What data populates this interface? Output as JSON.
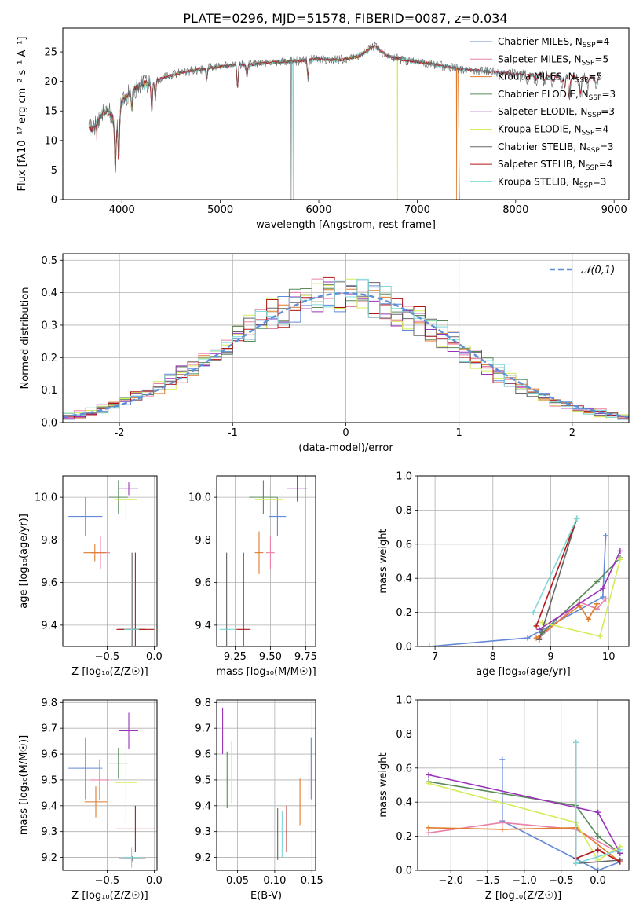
{
  "figure": {
    "title": "PLATE=0296, MJD=51578, FIBERID=0087, z=0.034"
  },
  "colors": {
    "chabrier_miles": "#6389d8",
    "salpeter_miles": "#e981a6",
    "kroupa_miles": "#e07a2b",
    "chabrier_elodie": "#5a8a5a",
    "salpeter_elodie": "#9933b8",
    "kroupa_elodie": "#d4ec5a",
    "chabrier_stelib": "#666666",
    "salpeter_stelib": "#b31818",
    "kroupa_stelib": "#7fd8d8",
    "normal": "#5c8fd6"
  },
  "chart_data": [
    {
      "id": "spectrum",
      "type": "line",
      "title": "PLATE=0296, MJD=51578, FIBERID=0087, z=0.034",
      "xlabel": "wavelength [Angstrom, rest frame]",
      "ylabel": "Flux [fλ10⁻¹⁷ erg cm⁻² s⁻¹ A⁻¹]",
      "xlim": [
        3400,
        9150
      ],
      "ylim": [
        0,
        29
      ],
      "xticks": [
        4000,
        5000,
        6000,
        7000,
        8000,
        9000
      ],
      "yticks": [
        0,
        5,
        10,
        15,
        20,
        25
      ],
      "grid": false,
      "legend_position": "top-right",
      "continuum": {
        "x": [
          3660,
          3700,
          3750,
          3800,
          3850,
          3900,
          3950,
          4000,
          4050,
          4100,
          4200,
          4300,
          4400,
          4500,
          4600,
          4700,
          4800,
          4900,
          5000,
          5100,
          5200,
          5300,
          5400,
          5500,
          5600,
          5800,
          6000,
          6200,
          6400,
          6563,
          6700,
          6900,
          7100,
          7300,
          7500,
          7700,
          7900,
          8100,
          8300,
          8500,
          8700,
          8850
        ],
        "y": [
          12.5,
          11.8,
          13.0,
          14.5,
          15.0,
          14.2,
          12.0,
          16.5,
          17.5,
          18.3,
          19.5,
          19.8,
          20.5,
          21.0,
          21.5,
          21.8,
          22.0,
          22.3,
          22.5,
          22.7,
          22.9,
          22.8,
          23.0,
          23.2,
          23.3,
          23.5,
          23.8,
          23.6,
          24.2,
          26.0,
          24.3,
          23.5,
          23.1,
          22.5,
          22.0,
          21.7,
          21.4,
          21.2,
          21.0,
          20.8,
          20.7,
          20.6
        ]
      },
      "absorption_lines": [
        {
          "x": 3933,
          "depth": 8
        },
        {
          "x": 3968,
          "depth": 7
        },
        {
          "x": 4101,
          "depth": 3
        },
        {
          "x": 4304,
          "depth": 5
        },
        {
          "x": 4340,
          "depth": 3
        },
        {
          "x": 4861,
          "depth": 2
        },
        {
          "x": 5175,
          "depth": 4
        },
        {
          "x": 5270,
          "depth": 2
        },
        {
          "x": 5890,
          "depth": 3
        },
        {
          "x": 8498,
          "depth": 2
        },
        {
          "x": 8542,
          "depth": 3
        },
        {
          "x": 8662,
          "depth": 3
        }
      ],
      "series": [
        {
          "key": "chabrier_miles",
          "label": "Chabrier MILES, N",
          "ssp": "4"
        },
        {
          "key": "salpeter_miles",
          "label": "Salpeter MILES, N",
          "ssp": "5"
        },
        {
          "key": "kroupa_miles",
          "label": "Kroupa MILES, N",
          "ssp": "5"
        },
        {
          "key": "chabrier_elodie",
          "label": "Chabrier ELODIE, N",
          "ssp": "3"
        },
        {
          "key": "salpeter_elodie",
          "label": "Salpeter ELODIE, N",
          "ssp": "3"
        },
        {
          "key": "kroupa_elodie",
          "label": "Kroupa ELODIE, N",
          "ssp": "4"
        },
        {
          "key": "chabrier_stelib",
          "label": "Chabrier STELIB, N",
          "ssp": "3"
        },
        {
          "key": "salpeter_stelib",
          "label": "Salpeter STELIB, N",
          "ssp": "4"
        },
        {
          "key": "kroupa_stelib",
          "label": "Kroupa STELIB, N",
          "ssp": "3"
        }
      ],
      "ssp_subscript": "SSP"
    },
    {
      "id": "residuals",
      "type": "histogram",
      "xlabel": "(data-model)/error",
      "ylabel": "Normed distribution",
      "xlim": [
        -2.5,
        2.5
      ],
      "ylim": [
        0,
        0.52
      ],
      "xticks": [
        -2,
        -1,
        0,
        1,
        2
      ],
      "yticks": [
        0.0,
        0.1,
        0.2,
        0.3,
        0.4,
        0.5
      ],
      "grid": true,
      "bin_width": 0.1,
      "legend_position": "top-right",
      "legend_label": "𝒩(0,1)",
      "normal_curve": {
        "mean": 0,
        "sigma": 1
      }
    },
    {
      "id": "age_vs_Z",
      "type": "scatter",
      "xlabel": "Z [log₁₀(Z/Z☉)]",
      "ylabel": "age  [log₁₀(age/yr)]",
      "xlim": [
        -0.97,
        0.03
      ],
      "ylim": [
        9.3,
        10.1
      ],
      "xticks": [
        -0.5,
        0.0
      ],
      "xticklabels": [
        "−0.5",
        "0.0"
      ],
      "yticks": [
        9.4,
        9.6,
        9.8,
        10.0
      ],
      "grid": true,
      "points": [
        {
          "key": "chabrier_miles",
          "x": -0.73,
          "y": 9.91,
          "xerr": 0.18,
          "yerr": 0.09
        },
        {
          "key": "salpeter_miles",
          "x": -0.57,
          "y": 9.74,
          "xerr": 0.1,
          "yerr": 0.075
        },
        {
          "key": "kroupa_miles",
          "x": -0.63,
          "y": 9.74,
          "xerr": 0.12,
          "yerr": 0.04
        },
        {
          "key": "chabrier_elodie",
          "x": -0.38,
          "y": 10.0,
          "xerr": 0.1,
          "yerr": 0.08
        },
        {
          "key": "salpeter_elodie",
          "x": -0.27,
          "y": 10.04,
          "xerr": 0.1,
          "yerr": 0.03
        },
        {
          "key": "kroupa_elodie",
          "x": -0.3,
          "y": 9.99,
          "xerr": 0.12,
          "yerr": 0.1
        },
        {
          "key": "chabrier_stelib",
          "x": -0.23,
          "y": 9.38,
          "xerr": 0.14,
          "yerr": 0.36
        },
        {
          "key": "salpeter_stelib",
          "x": -0.2,
          "y": 9.38,
          "xerr": 0.2,
          "yerr": 0.36
        },
        {
          "key": "kroupa_stelib",
          "x": -0.24,
          "y": 9.38,
          "xerr": 0.08,
          "yerr": 0.36
        }
      ]
    },
    {
      "id": "age_vs_mass",
      "type": "scatter",
      "xlabel": "mass [log₁₀(M/M☉)]",
      "ylabel": "",
      "xlim": [
        9.12,
        9.82
      ],
      "ylim": [
        9.3,
        10.1
      ],
      "xticks": [
        9.25,
        9.5,
        9.75
      ],
      "xticklabels": [
        "9.25",
        "9.50",
        "9.75"
      ],
      "yticks": [
        9.4,
        9.6,
        9.8,
        10.0
      ],
      "grid": true,
      "points": [
        {
          "key": "chabrier_miles",
          "x": 9.55,
          "y": 9.91,
          "xerr": 0.06,
          "yerr": 0.09
        },
        {
          "key": "salpeter_miles",
          "x": 9.5,
          "y": 9.74,
          "xerr": 0.03,
          "yerr": 0.075
        },
        {
          "key": "kroupa_miles",
          "x": 9.42,
          "y": 9.74,
          "xerr": 0.03,
          "yerr": 0.1
        },
        {
          "key": "chabrier_elodie",
          "x": 9.45,
          "y": 10.0,
          "xerr": 0.1,
          "yerr": 0.08
        },
        {
          "key": "salpeter_elodie",
          "x": 9.69,
          "y": 10.04,
          "xerr": 0.07,
          "yerr": 0.06
        },
        {
          "key": "kroupa_elodie",
          "x": 9.49,
          "y": 9.99,
          "xerr": 0.1,
          "yerr": 0.07
        },
        {
          "key": "chabrier_stelib",
          "x": 9.19,
          "y": 9.38,
          "xerr": 0.01,
          "yerr": 0.36
        },
        {
          "key": "salpeter_stelib",
          "x": 9.31,
          "y": 9.38,
          "xerr": 0.05,
          "yerr": 0.36
        },
        {
          "key": "kroupa_stelib",
          "x": 9.2,
          "y": 9.38,
          "xerr": 0.06,
          "yerr": 0.36
        }
      ]
    },
    {
      "id": "weight_vs_age",
      "type": "line",
      "xlabel": "age  [log₁₀(age/yr)]",
      "ylabel": "mass weight",
      "xlim": [
        6.7,
        10.35
      ],
      "ylim": [
        0,
        1.0
      ],
      "xticks": [
        7,
        8,
        9,
        10
      ],
      "yticks": [
        0.0,
        0.2,
        0.4,
        0.6,
        0.8,
        1.0
      ],
      "grid": true,
      "series": [
        {
          "key": "chabrier_miles",
          "x": [
            6.9,
            8.6,
            9.9,
            9.95
          ],
          "y": [
            0.0,
            0.05,
            0.29,
            0.65
          ]
        },
        {
          "key": "salpeter_miles",
          "x": [
            8.8,
            9.5,
            9.8,
            9.95
          ],
          "y": [
            0.05,
            0.26,
            0.22,
            0.28
          ]
        },
        {
          "key": "kroupa_miles",
          "x": [
            8.75,
            9.5,
            9.65,
            9.8
          ],
          "y": [
            0.05,
            0.24,
            0.16,
            0.25
          ]
        },
        {
          "key": "chabrier_elodie",
          "x": [
            8.85,
            9.8,
            10.2
          ],
          "y": [
            0.08,
            0.38,
            0.52
          ]
        },
        {
          "key": "salpeter_elodie",
          "x": [
            8.8,
            9.9,
            10.2
          ],
          "y": [
            0.1,
            0.34,
            0.56
          ]
        },
        {
          "key": "kroupa_elodie",
          "x": [
            8.85,
            9.85,
            10.2
          ],
          "y": [
            0.14,
            0.06,
            0.51
          ]
        },
        {
          "key": "chabrier_stelib",
          "x": [
            8.8,
            9.45
          ],
          "y": [
            0.04,
            0.75
          ]
        },
        {
          "key": "salpeter_stelib",
          "x": [
            8.75,
            9.45
          ],
          "y": [
            0.12,
            0.75
          ]
        },
        {
          "key": "kroupa_stelib",
          "x": [
            8.7,
            9.45
          ],
          "y": [
            0.2,
            0.75
          ]
        }
      ]
    },
    {
      "id": "mass_vs_Z",
      "type": "scatter",
      "xlabel": "Z [log₁₀(Z/Z☉)]",
      "ylabel": "mass [log₁₀(M/M☉)]",
      "xlim": [
        -0.97,
        0.03
      ],
      "ylim": [
        9.15,
        9.81
      ],
      "xticks": [
        -0.5,
        0.0
      ],
      "xticklabels": [
        "−0.5",
        "0.0"
      ],
      "yticks": [
        9.2,
        9.3,
        9.4,
        9.5,
        9.6,
        9.7,
        9.8
      ],
      "grid": true,
      "points": [
        {
          "key": "chabrier_miles",
          "x": -0.73,
          "y": 9.545,
          "xerr": 0.18,
          "yerr": 0.12
        },
        {
          "key": "salpeter_miles",
          "x": -0.58,
          "y": 9.5,
          "xerr": 0.1,
          "yerr": 0.08
        },
        {
          "key": "kroupa_miles",
          "x": -0.62,
          "y": 9.415,
          "xerr": 0.12,
          "yerr": 0.06
        },
        {
          "key": "chabrier_elodie",
          "x": -0.38,
          "y": 9.565,
          "xerr": 0.1,
          "yerr": 0.06
        },
        {
          "key": "salpeter_elodie",
          "x": -0.27,
          "y": 9.69,
          "xerr": 0.1,
          "yerr": 0.07
        },
        {
          "key": "kroupa_elodie",
          "x": -0.3,
          "y": 9.49,
          "xerr": 0.12,
          "yerr": 0.15
        },
        {
          "key": "chabrier_stelib",
          "x": -0.23,
          "y": 9.195,
          "xerr": 0.14,
          "yerr": 0.01
        },
        {
          "key": "salpeter_stelib",
          "x": -0.2,
          "y": 9.31,
          "xerr": 0.2,
          "yerr": 0.09
        },
        {
          "key": "kroupa_stelib",
          "x": -0.24,
          "y": 9.2,
          "xerr": 0.08,
          "yerr": 0.04
        }
      ]
    },
    {
      "id": "mass_vs_ebv",
      "type": "scatter",
      "xlabel": "E(B-V)",
      "ylabel": "",
      "xlim": [
        0.022,
        0.155
      ],
      "ylim": [
        9.15,
        9.81
      ],
      "xticks": [
        0.05,
        0.1,
        0.15
      ],
      "xticklabels": [
        "0.05",
        "0.10",
        "0.15"
      ],
      "yticks": [
        9.2,
        9.3,
        9.4,
        9.5,
        9.6,
        9.7,
        9.8
      ],
      "grid": true,
      "points": [
        {
          "key": "chabrier_miles",
          "x": 0.149,
          "y": 9.545,
          "xerr": 0,
          "yerr": 0.12
        },
        {
          "key": "salpeter_miles",
          "x": 0.146,
          "y": 9.5,
          "xerr": 0,
          "yerr": 0.08
        },
        {
          "key": "kroupa_miles",
          "x": 0.134,
          "y": 9.415,
          "xerr": 0,
          "yerr": 0.09
        },
        {
          "key": "chabrier_elodie",
          "x": 0.036,
          "y": 9.5,
          "xerr": 0,
          "yerr": 0.11
        },
        {
          "key": "salpeter_elodie",
          "x": 0.03,
          "y": 9.69,
          "xerr": 0,
          "yerr": 0.09
        },
        {
          "key": "kroupa_elodie",
          "x": 0.042,
          "y": 9.53,
          "xerr": 0,
          "yerr": 0.12
        },
        {
          "key": "chabrier_stelib",
          "x": 0.104,
          "y": 9.29,
          "xerr": 0,
          "yerr": 0.1
        },
        {
          "key": "salpeter_stelib",
          "x": 0.116,
          "y": 9.31,
          "xerr": 0,
          "yerr": 0.09
        },
        {
          "key": "kroupa_stelib",
          "x": 0.11,
          "y": 9.29,
          "xerr": 0,
          "yerr": 0.09
        }
      ]
    },
    {
      "id": "weight_vs_Z",
      "type": "line",
      "xlabel": "Z [log₁₀(Z/Z☉)]",
      "ylabel": "mass weight",
      "xlim": [
        -2.45,
        0.42
      ],
      "ylim": [
        0,
        1.0
      ],
      "xticks": [
        -2.0,
        -1.5,
        -1.0,
        -0.5,
        0.0
      ],
      "xticklabels": [
        "−2.0",
        "−1.5",
        "−1.0",
        "−0.5",
        "0.0"
      ],
      "yticks": [
        0.0,
        0.2,
        0.4,
        0.6,
        0.8,
        1.0
      ],
      "grid": true,
      "series": [
        {
          "key": "chabrier_miles",
          "x": [
            -1.3,
            -1.3,
            0.0,
            0.3
          ],
          "y": [
            0.65,
            0.29,
            0.0,
            0.05
          ]
        },
        {
          "key": "salpeter_miles",
          "x": [
            -2.3,
            -1.3,
            -0.3,
            0.3
          ],
          "y": [
            0.22,
            0.28,
            0.24,
            0.1
          ]
        },
        {
          "key": "kroupa_miles",
          "x": [
            -2.3,
            -1.3,
            -0.3,
            0.3
          ],
          "y": [
            0.25,
            0.24,
            0.25,
            0.05
          ]
        },
        {
          "key": "chabrier_elodie",
          "x": [
            -2.3,
            -0.3,
            0.0,
            0.3
          ],
          "y": [
            0.52,
            0.38,
            0.2,
            0.1
          ]
        },
        {
          "key": "salpeter_elodie",
          "x": [
            -2.3,
            0.0,
            0.3
          ],
          "y": [
            0.56,
            0.34,
            0.1
          ]
        },
        {
          "key": "kroupa_elodie",
          "x": [
            -2.3,
            -0.3,
            0.0,
            0.3
          ],
          "y": [
            0.51,
            0.28,
            0.06,
            0.14
          ]
        },
        {
          "key": "chabrier_stelib",
          "x": [
            -0.3,
            -0.3,
            0.3
          ],
          "y": [
            0.75,
            0.04,
            0.06
          ]
        },
        {
          "key": "salpeter_stelib",
          "x": [
            -0.3,
            0.0,
            0.3
          ],
          "y": [
            0.07,
            0.12,
            0.05
          ]
        },
        {
          "key": "kroupa_stelib",
          "x": [
            -0.3,
            -0.3,
            0.3
          ],
          "y": [
            0.75,
            0.04,
            0.12
          ]
        }
      ]
    }
  ]
}
